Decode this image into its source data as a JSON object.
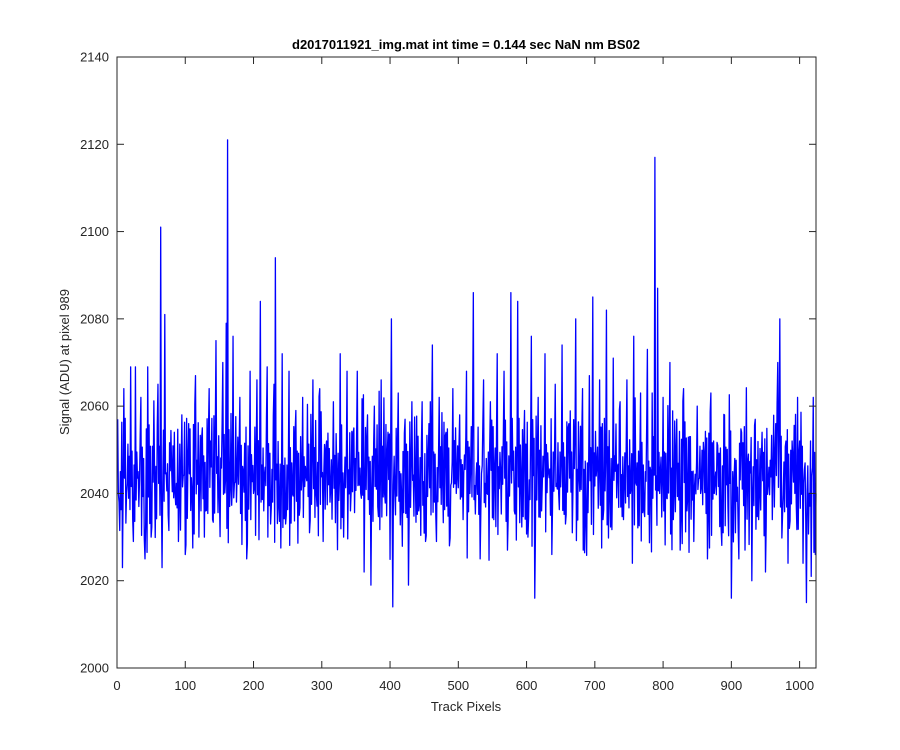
{
  "chart_data": {
    "type": "line",
    "title": "d2017011921_img.mat int time = 0.144 sec  NaN nm BS02",
    "xlabel": "Track Pixels",
    "ylabel": "Signal (ADU) at pixel 989",
    "xlim": [
      0,
      1024
    ],
    "ylim": [
      2000,
      2140
    ],
    "xticks": [
      0,
      100,
      200,
      300,
      400,
      500,
      600,
      700,
      800,
      900,
      1000
    ],
    "yticks": [
      2000,
      2020,
      2040,
      2060,
      2080,
      2100,
      2120,
      2140
    ],
    "grid": false,
    "legend": "none",
    "line_color": "#0000ff",
    "series": [
      {
        "x_start": 1,
        "x_step": 1,
        "points_note_omitted": true,
        "anchors": [
          [
            1,
            2057
          ],
          [
            3,
            2038
          ],
          [
            5,
            2045
          ],
          [
            8,
            2023
          ],
          [
            10,
            2064
          ],
          [
            14,
            2040
          ],
          [
            20,
            2069
          ],
          [
            23,
            2034
          ],
          [
            27,
            2069
          ],
          [
            32,
            2037
          ],
          [
            35,
            2062
          ],
          [
            41,
            2025
          ],
          [
            45,
            2069
          ],
          [
            50,
            2030
          ],
          [
            55,
            2045
          ],
          [
            60,
            2065
          ],
          [
            64,
            2101
          ],
          [
            66,
            2023
          ],
          [
            70,
            2081
          ],
          [
            75,
            2035
          ],
          [
            80,
            2046
          ],
          [
            85,
            2040
          ],
          [
            90,
            2029
          ],
          [
            95,
            2058
          ],
          [
            100,
            2026
          ],
          [
            105,
            2056
          ],
          [
            110,
            2040
          ],
          [
            115,
            2067
          ],
          [
            120,
            2030
          ],
          [
            125,
            2055
          ],
          [
            130,
            2036
          ],
          [
            135,
            2064
          ],
          [
            140,
            2034
          ],
          [
            145,
            2075
          ],
          [
            150,
            2040
          ],
          [
            155,
            2070
          ],
          [
            160,
            2079
          ],
          [
            162,
            2121
          ],
          [
            165,
            2037
          ],
          [
            170,
            2076
          ],
          [
            175,
            2038
          ],
          [
            180,
            2062
          ],
          [
            185,
            2045
          ],
          [
            190,
            2025
          ],
          [
            195,
            2068
          ],
          [
            200,
            2040
          ],
          [
            205,
            2066
          ],
          [
            210,
            2084
          ],
          [
            215,
            2036
          ],
          [
            220,
            2069
          ],
          [
            225,
            2033
          ],
          [
            230,
            2065
          ],
          [
            232,
            2094
          ],
          [
            237,
            2037
          ],
          [
            242,
            2072
          ],
          [
            247,
            2033
          ],
          [
            252,
            2068
          ],
          [
            257,
            2040
          ],
          [
            262,
            2059
          ],
          [
            267,
            2035
          ],
          [
            272,
            2062
          ],
          [
            277,
            2044
          ],
          [
            282,
            2031
          ],
          [
            287,
            2066
          ],
          [
            292,
            2040
          ],
          [
            297,
            2064
          ],
          [
            302,
            2029
          ],
          [
            307,
            2052
          ],
          [
            312,
            2038
          ],
          [
            317,
            2061
          ],
          [
            322,
            2045
          ],
          [
            327,
            2072
          ],
          [
            332,
            2030
          ],
          [
            337,
            2068
          ],
          [
            342,
            2036
          ],
          [
            347,
            2055
          ],
          [
            352,
            2068
          ],
          [
            357,
            2040
          ],
          [
            362,
            2022
          ],
          [
            367,
            2058
          ],
          [
            372,
            2019
          ],
          [
            377,
            2060
          ],
          [
            382,
            2037
          ],
          [
            387,
            2066
          ],
          [
            392,
            2040
          ],
          [
            397,
            2054
          ],
          [
            402,
            2080
          ],
          [
            404,
            2014
          ],
          [
            407,
            2040
          ],
          [
            412,
            2063
          ],
          [
            417,
            2039
          ],
          [
            422,
            2057
          ],
          [
            427,
            2019
          ],
          [
            432,
            2061
          ],
          [
            437,
            2044
          ],
          [
            442,
            2036
          ],
          [
            447,
            2061
          ],
          [
            452,
            2029
          ],
          [
            457,
            2056
          ],
          [
            462,
            2074
          ],
          [
            467,
            2035
          ],
          [
            472,
            2062
          ],
          [
            477,
            2043
          ],
          [
            482,
            2054
          ],
          [
            487,
            2028
          ],
          [
            492,
            2064
          ],
          [
            497,
            2040
          ],
          [
            502,
            2058
          ],
          [
            507,
            2034
          ],
          [
            512,
            2068
          ],
          [
            517,
            2040
          ],
          [
            522,
            2086
          ],
          [
            527,
            2047
          ],
          [
            532,
            2025
          ],
          [
            537,
            2066
          ],
          [
            542,
            2040
          ],
          [
            547,
            2061
          ],
          [
            552,
            2034
          ],
          [
            557,
            2072
          ],
          [
            562,
            2045
          ],
          [
            567,
            2068
          ],
          [
            572,
            2027
          ],
          [
            577,
            2086
          ],
          [
            582,
            2036
          ],
          [
            587,
            2084
          ],
          [
            592,
            2043
          ],
          [
            597,
            2059
          ],
          [
            602,
            2030
          ],
          [
            607,
            2076
          ],
          [
            612,
            2016
          ],
          [
            617,
            2062
          ],
          [
            622,
            2036
          ],
          [
            627,
            2072
          ],
          [
            632,
            2045
          ],
          [
            637,
            2026
          ],
          [
            642,
            2065
          ],
          [
            647,
            2040
          ],
          [
            652,
            2074
          ],
          [
            657,
            2033
          ],
          [
            662,
            2056
          ],
          [
            667,
            2031
          ],
          [
            672,
            2080
          ],
          [
            677,
            2044
          ],
          [
            682,
            2064
          ],
          [
            687,
            2034
          ],
          [
            692,
            2067
          ],
          [
            697,
            2085
          ],
          [
            702,
            2044
          ],
          [
            707,
            2066
          ],
          [
            712,
            2034
          ],
          [
            717,
            2082
          ],
          [
            722,
            2040
          ],
          [
            727,
            2071
          ],
          [
            732,
            2039
          ],
          [
            737,
            2061
          ],
          [
            742,
            2034
          ],
          [
            747,
            2066
          ],
          [
            752,
            2040
          ],
          [
            757,
            2076
          ],
          [
            762,
            2047
          ],
          [
            767,
            2063
          ],
          [
            772,
            2036
          ],
          [
            777,
            2073
          ],
          [
            782,
            2045
          ],
          [
            786,
            2053
          ],
          [
            788,
            2117
          ],
          [
            790,
            2044
          ],
          [
            792,
            2087
          ],
          [
            795,
            2040
          ],
          [
            800,
            2062
          ],
          [
            805,
            2039
          ],
          [
            810,
            2070
          ],
          [
            815,
            2034
          ],
          [
            820,
            2057
          ],
          [
            825,
            2027
          ],
          [
            830,
            2064
          ],
          [
            835,
            2036
          ],
          [
            840,
            2053
          ],
          [
            845,
            2029
          ],
          [
            850,
            2060
          ],
          [
            855,
            2040
          ],
          [
            860,
            2049
          ],
          [
            865,
            2025
          ],
          [
            870,
            2063
          ],
          [
            875,
            2040
          ],
          [
            880,
            2051
          ],
          [
            885,
            2032
          ],
          [
            890,
            2058
          ],
          [
            895,
            2037
          ],
          [
            900,
            2016
          ],
          [
            905,
            2048
          ],
          [
            910,
            2032
          ],
          [
            915,
            2054
          ],
          [
            920,
            2027
          ],
          [
            925,
            2049
          ],
          [
            930,
            2020
          ],
          [
            935,
            2057
          ],
          [
            940,
            2034
          ],
          [
            945,
            2054
          ],
          [
            950,
            2022
          ],
          [
            955,
            2046
          ],
          [
            960,
            2034
          ],
          [
            965,
            2056
          ],
          [
            968,
            2070
          ],
          [
            971,
            2080
          ],
          [
            975,
            2035
          ],
          [
            980,
            2052
          ],
          [
            985,
            2032
          ],
          [
            990,
            2048
          ],
          [
            995,
            2038
          ],
          [
            1000,
            2052
          ],
          [
            1005,
            2024
          ],
          [
            1008,
            2047
          ],
          [
            1010,
            2015
          ],
          [
            1014,
            2040
          ],
          [
            1017,
            2021
          ],
          [
            1020,
            2062
          ],
          [
            1023,
            2026
          ],
          [
            1024,
            2040
          ]
        ]
      }
    ]
  }
}
